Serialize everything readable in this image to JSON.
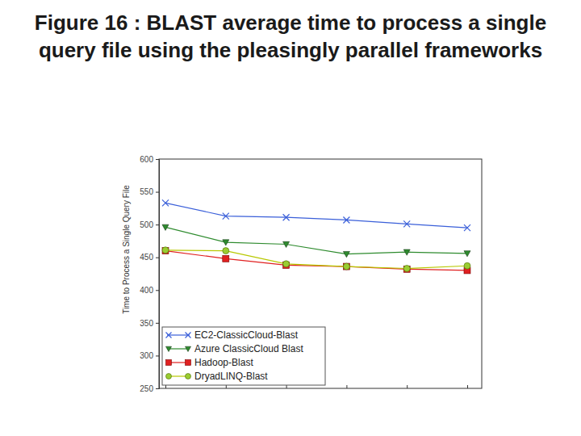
{
  "chart_data": {
    "type": "line",
    "title": "Figure 16 : BLAST average time to process a single query file using the pleasingly parallel frameworks",
    "y_label": "Time to Process a Single Query File",
    "categories": [
      null,
      null,
      null,
      null,
      null,
      null
    ],
    "ylim": [
      250,
      600
    ],
    "yticks": [
      250,
      300,
      350,
      400,
      450,
      500,
      550,
      600
    ],
    "tick_labels": "y",
    "legend": "lower left",
    "series": [
      {
        "name": "EC2-ClassicCloud-Blast",
        "color": "#3a5fd9",
        "marker": "x",
        "line_style": "solid",
        "values": [
          533,
          513,
          511,
          507,
          501,
          495
        ]
      },
      {
        "name": "Azure ClassicCloud Blast",
        "color": "#2e8b2e",
        "marker": "triangle-down",
        "line_style": "solid",
        "values": [
          496,
          473,
          470,
          455,
          458,
          456
        ]
      },
      {
        "name": "Hadoop-Blast",
        "color": "#e02020",
        "marker": "square",
        "line_style": "solid",
        "values": [
          460,
          448,
          438,
          436,
          432,
          430
        ]
      },
      {
        "name": "DryadLINQ-Blast",
        "color": "#b8c800",
        "marker": "circle",
        "line_style": "solid",
        "values": [
          461,
          460,
          440,
          436,
          433,
          437
        ]
      }
    ]
  }
}
